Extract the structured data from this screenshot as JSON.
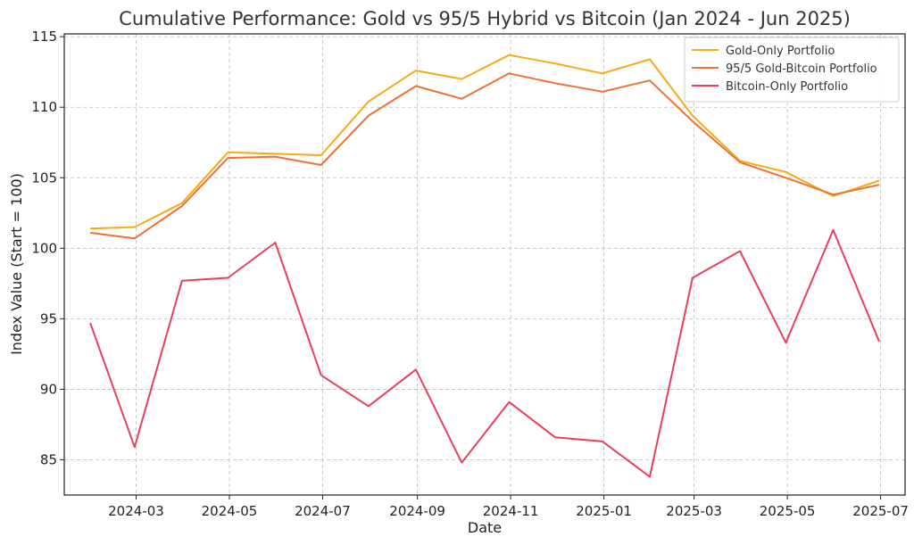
{
  "chart_data": {
    "type": "line",
    "title": "Cumulative Performance: Gold vs 95/5 Hybrid vs Bitcoin (Jan 2024 - Jun 2025)",
    "xlabel": "Date",
    "ylabel": "Index Value (Start = 100)",
    "x": [
      "2024-01-31",
      "2024-02-29",
      "2024-03-31",
      "2024-04-30",
      "2024-05-31",
      "2024-06-30",
      "2024-07-31",
      "2024-08-31",
      "2024-09-30",
      "2024-10-31",
      "2024-11-30",
      "2024-12-31",
      "2025-01-31",
      "2025-02-28",
      "2025-03-31",
      "2025-04-30",
      "2025-05-31",
      "2025-06-30"
    ],
    "xlim": [
      "2024-01-14",
      "2025-07-17"
    ],
    "ylim": [
      82.5,
      115.2
    ],
    "x_ticks": [
      "2024-03",
      "2024-05",
      "2024-07",
      "2024-09",
      "2024-11",
      "2025-01",
      "2025-03",
      "2025-05",
      "2025-07"
    ],
    "y_ticks": [
      85,
      90,
      95,
      100,
      105,
      110,
      115
    ],
    "grid": true,
    "legend_position": "top-right",
    "series": [
      {
        "name": "Gold-Only Portfolio",
        "color": "#f5ab15",
        "values": [
          101.4,
          101.5,
          103.2,
          106.8,
          106.7,
          106.6,
          110.4,
          112.6,
          112.0,
          113.7,
          113.1,
          112.4,
          113.4,
          109.4,
          106.2,
          105.4,
          103.7,
          104.8
        ]
      },
      {
        "name": "95/5 Gold-Bitcoin Portfolio",
        "color": "#ef7133",
        "values": [
          101.1,
          100.7,
          103.0,
          106.4,
          106.5,
          105.9,
          109.4,
          111.5,
          110.6,
          112.4,
          111.7,
          111.1,
          111.9,
          109.0,
          106.1,
          105.0,
          103.8,
          104.5
        ]
      },
      {
        "name": "Bitcoin-Only Portfolio",
        "color": "#e8405c",
        "values": [
          94.7,
          85.9,
          97.7,
          97.9,
          100.4,
          91.0,
          88.8,
          91.4,
          84.8,
          89.1,
          86.6,
          86.3,
          83.8,
          97.9,
          99.8,
          93.3,
          101.3,
          93.4
        ]
      }
    ]
  }
}
